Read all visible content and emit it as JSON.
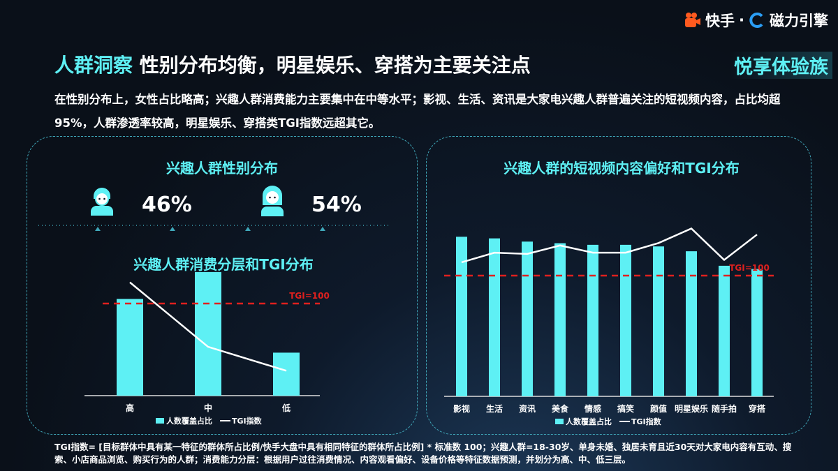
{
  "logo": {
    "brand1": "快手",
    "sep": "·",
    "brand2": "磁力引擎"
  },
  "header": {
    "title_highlight": "人群洞察",
    "title_main": "性别分布均衡，明星娱乐、穿搭为主要关注点",
    "tag": "悦享体验族"
  },
  "summary": "在性别分布上，女性占比略高；兴趣人群消费能力主要集中在中等水平；影视、生活、资讯是大家电兴趣人群普遍关注的短视频内容，占比均超95%，人群渗透率较高，明星娱乐、穿搭类TGI指数远超其它。",
  "gender": {
    "title": "兴趣人群性别分布",
    "male_pct": "46%",
    "female_pct": "54%"
  },
  "colors": {
    "accent": "#5ef0f4",
    "bar": "#5ef0f4",
    "line": "#ffffff",
    "reference": "#e0201e"
  },
  "chart_data": [
    {
      "type": "bar",
      "title": "兴趣人群消费分层和TGI分布",
      "categories": [
        "高",
        "中",
        "低"
      ],
      "series": [
        {
          "name": "人数覆盖占比",
          "type": "bar",
          "values": [
            36,
            46,
            16
          ]
        },
        {
          "name": "TGI指数",
          "type": "line",
          "values": [
            123,
            53,
            27
          ]
        }
      ],
      "reference_line": {
        "label": "TGI=100",
        "value": 100
      },
      "legend": "bottom",
      "grid": false
    },
    {
      "type": "bar",
      "title": "兴趣人群的短视频内容偏好和TGI分布",
      "categories": [
        "影视",
        "生活",
        "资讯",
        "美食",
        "情感",
        "搞笑",
        "颜值",
        "明星娱乐",
        "随手拍",
        "穿搭"
      ],
      "series": [
        {
          "name": "人数覆盖占比",
          "type": "bar",
          "values": [
            99,
            98,
            96,
            95,
            94,
            94,
            93,
            90,
            81,
            79
          ]
        },
        {
          "name": "TGI指数",
          "type": "line",
          "values": [
            111,
            119,
            118,
            125,
            119,
            119,
            127,
            139,
            113,
            134
          ]
        }
      ],
      "reference_line": {
        "label": "TGI=100",
        "value": 100
      },
      "legend": "bottom",
      "grid": false
    }
  ],
  "footnote": "TGI指数= [目标群体中具有某一特征的群体所占比例/快手大盘中具有相同特征的群体所占比例] * 标准数 100；兴趣人群=18-30岁、单身未婚、独居未育且近30天对大家电内容有互动、搜索、小店商品浏览、购买行为的人群；消费能力分层：根据用户过往消费情况、内容观看偏好、设备价格等特征数据预测，并划分为高、中、低三层。"
}
